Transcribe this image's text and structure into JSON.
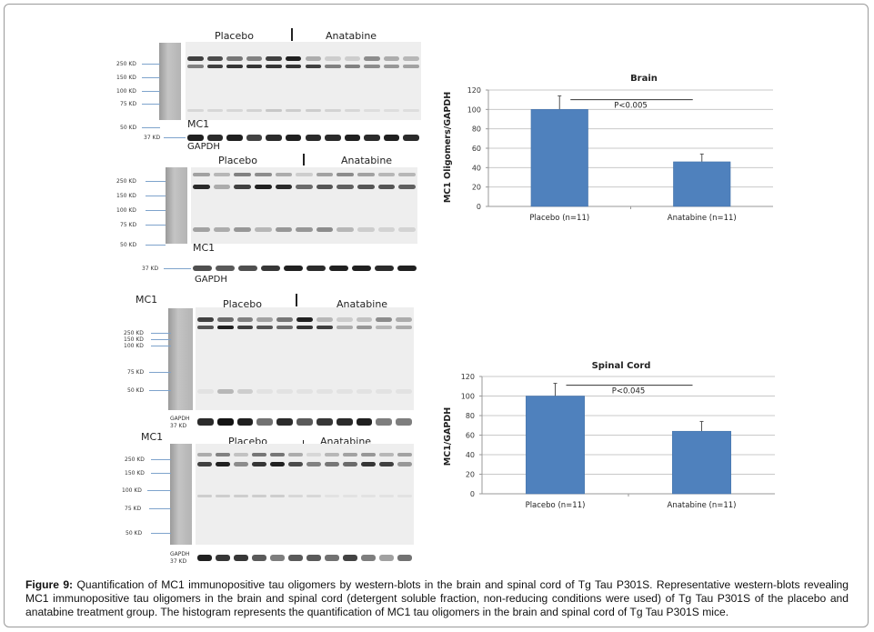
{
  "blots": [
    {
      "id": "brain-1",
      "group_labels": [
        "Placebo",
        "Anatabine"
      ],
      "antibody_label": "MC1",
      "loading_label": "GAPDH",
      "markers": [
        "250 KD",
        "150 KD",
        "100 KD",
        "75 KD",
        "50 KD"
      ],
      "loading_marker": "37 KD"
    },
    {
      "id": "brain-2",
      "group_labels": [
        "Placebo",
        "Anatabine"
      ],
      "antibody_label": "MC1",
      "loading_label": "GAPDH",
      "markers": [
        "250 KD",
        "150 KD",
        "100 KD",
        "75 KD",
        "50 KD"
      ],
      "loading_marker": "37 KD"
    },
    {
      "id": "spinal-1",
      "group_labels": [
        "Placebo",
        "Anatabine"
      ],
      "antibody_label": "MC1",
      "loading_label": "GAPDH",
      "markers": [
        "250 KD",
        "150 KD",
        "100 KD",
        "75 KD",
        "50 KD"
      ],
      "loading_marker": "37 KD"
    },
    {
      "id": "spinal-2",
      "group_labels": [
        "Placebo",
        "Anatabine"
      ],
      "antibody_label": "MC1",
      "loading_label": "GAPDH",
      "markers": [
        "250 KD",
        "150 KD",
        "100 KD",
        "75 KD",
        "50 KD"
      ],
      "loading_marker": "37 KD"
    }
  ],
  "chart_data": [
    {
      "type": "bar",
      "title": "Brain",
      "categories": [
        "Placebo (n=11)",
        "Anatabine (n=11)"
      ],
      "values": [
        100,
        46
      ],
      "error_upper": [
        14,
        8
      ],
      "ylabel": "MC1 Oligomers/GAPDH",
      "xlabel": "",
      "ylim": [
        0,
        120
      ],
      "yticks": [
        0,
        20,
        40,
        60,
        80,
        100,
        120
      ],
      "grid": true,
      "significance": {
        "label": "P<0.005",
        "y": 110
      },
      "bar_color": "#4f81bd"
    },
    {
      "type": "bar",
      "title": "Spinal Cord",
      "categories": [
        "Placebo (n=11)",
        "Anatabine (n=11)"
      ],
      "values": [
        100,
        64
      ],
      "error_upper": [
        13,
        10
      ],
      "ylabel": "MC1/GAPDH",
      "xlabel": "",
      "ylim": [
        0,
        120
      ],
      "yticks": [
        0,
        20,
        40,
        60,
        80,
        100,
        120
      ],
      "grid": true,
      "significance": {
        "label": "P<0.045",
        "y": 111
      },
      "bar_color": "#4f81bd"
    }
  ],
  "caption": {
    "label": "Figure 9:",
    "text": " Quantification of MC1 immunopositive tau oligomers by western-blots in the brain and spinal cord of Tg Tau P301S. Representative western-blots revealing MC1 immunopositive tau oligomers in the brain and spinal cord (detergent soluble fraction, non-reducing conditions were used) of Tg Tau P301S of the placebo and anatabine treatment group. The histogram represents the quantification of MC1 tau oligomers in the brain and spinal cord of Tg Tau P301S mice."
  }
}
